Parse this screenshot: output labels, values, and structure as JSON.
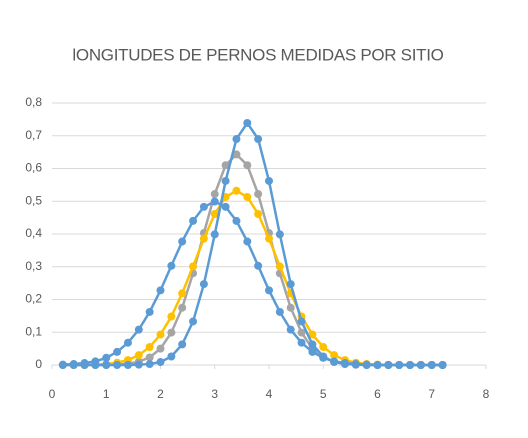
{
  "chart_data": {
    "type": "line",
    "title": "lONGITUDES DE PERNOS MEDIDAS POR SITIO",
    "x": [
      0.2,
      0.4,
      0.6,
      0.8,
      1.0,
      1.2,
      1.4,
      1.6,
      1.8,
      2.0,
      2.2,
      2.4,
      2.6,
      2.8,
      3.0,
      3.2,
      3.4,
      3.6,
      3.8,
      4.0,
      4.2,
      4.4,
      4.6,
      4.8,
      5.0,
      5.2,
      5.4,
      5.6,
      5.8,
      6.0,
      6.2,
      6.4,
      6.6,
      6.8,
      7.0,
      7.2
    ],
    "series": [
      {
        "color": "#a5a5a5",
        "values": [
          0,
          0,
          0,
          0,
          0,
          0.001,
          0.004,
          0.01,
          0.023,
          0.05,
          0.099,
          0.175,
          0.28,
          0.403,
          0.522,
          0.61,
          0.643,
          0.61,
          0.522,
          0.403,
          0.28,
          0.175,
          0.099,
          0.05,
          0.023,
          0.01,
          0.004,
          0.001,
          0,
          0,
          0,
          0,
          0,
          0,
          0,
          0
        ]
      },
      {
        "color": "#ffc000",
        "values": [
          0,
          0,
          0,
          0.001,
          0.003,
          0.007,
          0.015,
          0.03,
          0.055,
          0.093,
          0.148,
          0.219,
          0.301,
          0.386,
          0.461,
          0.513,
          0.532,
          0.513,
          0.461,
          0.386,
          0.301,
          0.219,
          0.148,
          0.093,
          0.055,
          0.03,
          0.015,
          0.007,
          0.003,
          0.001,
          0,
          0,
          0,
          0,
          0,
          0
        ]
      },
      {
        "color": "#5b9bd5",
        "values": [
          0.001,
          0.003,
          0.006,
          0.011,
          0.022,
          0.04,
          0.068,
          0.108,
          0.162,
          0.228,
          0.303,
          0.377,
          0.44,
          0.483,
          0.499,
          0.483,
          0.44,
          0.377,
          0.303,
          0.228,
          0.162,
          0.108,
          0.068,
          0.04,
          0.022,
          0.011,
          0.006,
          0.003,
          0.001,
          0,
          0,
          0,
          0,
          0,
          0,
          0
        ]
      },
      {
        "color": "#5b9bd5",
        "values": [
          0,
          0,
          0,
          0,
          0,
          0,
          0,
          0.001,
          0.003,
          0.009,
          0.026,
          0.063,
          0.133,
          0.247,
          0.399,
          0.562,
          0.69,
          0.739,
          0.69,
          0.562,
          0.399,
          0.247,
          0.133,
          0.063,
          0.026,
          0.009,
          0.003,
          0.001,
          0,
          0,
          0,
          0,
          0,
          0,
          0,
          0
        ]
      }
    ],
    "xlim": [
      0,
      8
    ],
    "xticks": [
      0,
      1,
      2,
      3,
      4,
      5,
      6,
      7,
      8
    ],
    "ylim": [
      0,
      0.8
    ],
    "yticks": [
      0,
      {
        "value": 0.1,
        "label": "0,1"
      },
      {
        "value": 0.2,
        "label": "0,2"
      },
      {
        "value": 0.3,
        "label": "0,3"
      },
      {
        "value": 0.4,
        "label": "0,4"
      },
      {
        "value": 0.5,
        "label": "0,5"
      },
      {
        "value": 0.6,
        "label": "0,6"
      },
      {
        "value": 0.7,
        "label": "0,7"
      },
      {
        "value": 0.8,
        "label": "0,8"
      }
    ],
    "grid": true
  }
}
